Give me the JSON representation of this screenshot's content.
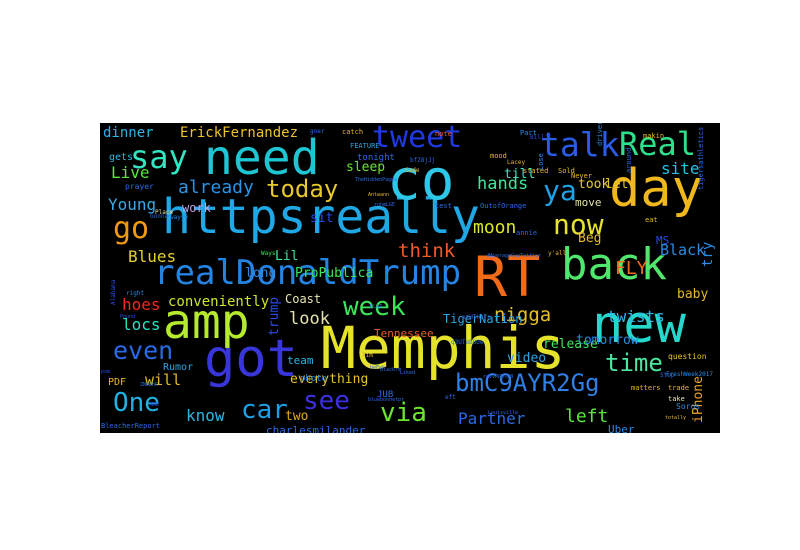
{
  "wordcloud": {
    "background": "#000000",
    "words": [
      {
        "text": "Memphis",
        "color": "#e4e22a"
      },
      {
        "text": "httpsreally",
        "color": "#1fa7e6"
      },
      {
        "text": "need",
        "color": "#1ec5d2"
      },
      {
        "text": "co",
        "color": "#2ec7e8"
      },
      {
        "text": "day",
        "color": "#f0b81c"
      },
      {
        "text": "RT",
        "color": "#f06a18"
      },
      {
        "text": "amp",
        "color": "#b6ea2f"
      },
      {
        "text": "new",
        "color": "#25d8cc"
      },
      {
        "text": "got",
        "color": "#3836d8"
      },
      {
        "text": "back",
        "color": "#4fe86d"
      },
      {
        "text": "realDonaldTrump",
        "color": "#2384e4"
      },
      {
        "text": "tweet",
        "color": "#1f3ae0"
      },
      {
        "text": "talk",
        "color": "#2a5ae6"
      },
      {
        "text": "Real",
        "color": "#2ee08a"
      },
      {
        "text": "say",
        "color": "#33e6c2"
      },
      {
        "text": "ya",
        "color": "#1ea3e6"
      },
      {
        "text": "go",
        "color": "#f09a14"
      },
      {
        "text": "now",
        "color": "#e6e22f"
      },
      {
        "text": "week",
        "color": "#3ce65a"
      },
      {
        "text": "even",
        "color": "#2a6ae6"
      },
      {
        "text": "see",
        "color": "#3d2fe0"
      },
      {
        "text": "via",
        "color": "#6ae62f"
      },
      {
        "text": "bmC9AYR2Gg",
        "color": "#2e7fe6"
      },
      {
        "text": "One",
        "color": "#20b2e0"
      },
      {
        "text": "time",
        "color": "#4be6a0"
      },
      {
        "text": "car",
        "color": "#1f9fe6"
      },
      {
        "text": "today",
        "color": "#e6c82a"
      },
      {
        "text": "Live",
        "color": "#5ae63a"
      },
      {
        "text": "already",
        "color": "#2a94e6"
      },
      {
        "text": "Young",
        "color": "#3aa9e6"
      },
      {
        "text": "site",
        "color": "#20c2e6"
      },
      {
        "text": "hands",
        "color": "#3de69a"
      },
      {
        "text": "think",
        "color": "#f05a2a"
      },
      {
        "text": "moon",
        "color": "#dde62f"
      },
      {
        "text": "FLY",
        "color": "#f06a1e"
      },
      {
        "text": "Blues",
        "color": "#e6d02f"
      },
      {
        "text": "nigga",
        "color": "#e6c22a"
      },
      {
        "text": "twists",
        "color": "#2fb6e6"
      },
      {
        "text": "Partner",
        "color": "#2a6ae6"
      },
      {
        "text": "left",
        "color": "#5ae63a"
      },
      {
        "text": "locs",
        "color": "#1fe6c2"
      },
      {
        "text": "hoes",
        "color": "#f02a1a"
      },
      {
        "text": "look",
        "color": "#e6e2b0"
      },
      {
        "text": "know",
        "color": "#2fb6e6"
      },
      {
        "text": "will",
        "color": "#e6b82a"
      },
      {
        "text": "video",
        "color": "#2aa6e6"
      },
      {
        "text": "release",
        "color": "#3fe65a"
      },
      {
        "text": "tomorrow",
        "color": "#2a8ae6"
      },
      {
        "text": "dinner",
        "color": "#2ab6e6"
      },
      {
        "text": "ErickFernandez",
        "color": "#f0c22a"
      },
      {
        "text": "everything",
        "color": "#e6c22a"
      },
      {
        "text": "Black",
        "color": "#2a8ae6"
      },
      {
        "text": "baby",
        "color": "#e6b82a"
      },
      {
        "text": "MS",
        "color": "#2a4ae6"
      },
      {
        "text": "Beg",
        "color": "#e6b82a"
      },
      {
        "text": "took",
        "color": "#e6d02a"
      },
      {
        "text": "let",
        "color": "#e6c22a"
      },
      {
        "text": "till",
        "color": "#3ae6c2"
      },
      {
        "text": "sleep",
        "color": "#6ae62f"
      },
      {
        "text": "work",
        "color": "#c0a0e6"
      },
      {
        "text": "sit",
        "color": "#2a4ae6"
      },
      {
        "text": "Lil",
        "color": "#3ae69a"
      },
      {
        "text": "long",
        "color": "#2a8ae6"
      },
      {
        "text": "ProPublica",
        "color": "#3ae65a"
      },
      {
        "text": "conveniently",
        "color": "#d0e62a"
      },
      {
        "text": "Coast",
        "color": "#e6e2b0"
      },
      {
        "text": "trump",
        "color": "#2a4ae6"
      },
      {
        "text": "Tennessee",
        "color": "#f05a2a"
      },
      {
        "text": "TigerNation",
        "color": "#2aa6e6"
      },
      {
        "text": "two",
        "color": "#e6a62a"
      },
      {
        "text": "charlesmilander",
        "color": "#2a6ae6"
      },
      {
        "text": "Uber",
        "color": "#2a8ae6"
      },
      {
        "text": "PDF",
        "color": "#e6b82a"
      },
      {
        "text": "Rumor",
        "color": "#2aa6e6"
      },
      {
        "text": "team",
        "color": "#2ab6e6"
      },
      {
        "text": "gets",
        "color": "#2ab6e6"
      },
      {
        "text": "move",
        "color": "#e6e2b0"
      },
      {
        "text": "photo",
        "color": "#2a8ae6"
      },
      {
        "text": "try",
        "color": "#2a8ae6"
      },
      {
        "text": "iPhone",
        "color": "#e6a62a"
      },
      {
        "text": "JUB",
        "color": "#2a6ae6"
      },
      {
        "text": "tonight",
        "color": "#2a6ae6"
      },
      {
        "text": "catch",
        "color": "#e6b82a"
      },
      {
        "text": "mood",
        "color": "#e6b82a"
      },
      {
        "text": "note",
        "color": "#f05a2a"
      },
      {
        "text": "Part",
        "color": "#2a8ae6"
      },
      {
        "text": "makin",
        "color": "#e6b82a"
      },
      {
        "text": "question",
        "color": "#e6c22a"
      },
      {
        "text": "matters",
        "color": "#e6b82a"
      },
      {
        "text": "trade",
        "color": "#e6b82a"
      },
      {
        "text": "take",
        "color": "#e6e2b0"
      },
      {
        "text": "Bill's",
        "color": "#2a4ae6"
      },
      {
        "text": "Sold",
        "color": "#e6c22a"
      },
      {
        "text": "FEATURE",
        "color": "#2aa6e6"
      },
      {
        "text": "Lose",
        "color": "#2a8ae6"
      },
      {
        "text": "stated",
        "color": "#e6b82a"
      },
      {
        "text": "right",
        "color": "#2a8ae6"
      },
      {
        "text": "prayer",
        "color": "#2a6ae6"
      },
      {
        "text": "Alabama",
        "color": "#2a4ae6"
      },
      {
        "text": "Never",
        "color": "#e6b82a"
      },
      {
        "text": "Ways",
        "color": "#3ae65a"
      },
      {
        "text": "Tim",
        "color": "#e6b82a"
      },
      {
        "text": "eft",
        "color": "#2a6ae6"
      },
      {
        "text": "around",
        "color": "#2a6ae6"
      },
      {
        "text": "driver",
        "color": "#2a8ae6"
      },
      {
        "text": "tigersathletics",
        "color": "#2a6ae6"
      },
      {
        "text": "Soros",
        "color": "#2a8ae6"
      },
      {
        "text": "FreshWeek2017",
        "color": "#2a8ae6"
      },
      {
        "text": "Lacey",
        "color": "#e6b82a"
      },
      {
        "text": "annie",
        "color": "#2a6ae6"
      },
      {
        "text": "y'all",
        "color": "#e6b82a"
      },
      {
        "text": "test",
        "color": "#2a6ae6"
      },
      {
        "text": "Cade",
        "color": "#e6b82a"
      },
      {
        "text": "Pound",
        "color": "#2a4ae6"
      },
      {
        "text": "Place",
        "color": "#e6e2b0"
      },
      {
        "text": "goer",
        "color": "#2a6ae6"
      },
      {
        "text": "totally",
        "color": "#e6b82a"
      },
      {
        "text": "Louisville",
        "color": "#2a6ae6"
      },
      {
        "text": "BleacherReport",
        "color": "#2a6ae6"
      },
      {
        "text": "wayyy",
        "color": "#2a8ae6"
      },
      {
        "text": "Gonna",
        "color": "#2a6ae6"
      },
      {
        "text": "WWE",
        "color": "#2a4ae6"
      },
      {
        "text": "Stop",
        "color": "#2a6ae6"
      },
      {
        "text": "eat",
        "color": "#e6b82a"
      },
      {
        "text": "heFuk",
        "color": "#2a6ae6"
      },
      {
        "text": "Liked",
        "color": "#2a6ae6"
      },
      {
        "text": "OutofOrange",
        "color": "#2a6ae6"
      },
      {
        "text": "pom",
        "color": "#2a4ae6"
      },
      {
        "text": "TheHiddenPages",
        "color": "#2a6ae6"
      },
      {
        "text": "#AverageGuyTwitter",
        "color": "#2a6ae6"
      },
      {
        "text": "ravVRPMsdB",
        "color": "#2a6ae6"
      },
      {
        "text": "ntHTHzrn",
        "color": "#2a6ae6"
      },
      {
        "text": "q3UTeb8Oe",
        "color": "#2a6ae6"
      },
      {
        "text": "bfZ8jJj",
        "color": "#2a6ae6"
      },
      {
        "text": "bluebonnetpr",
        "color": "#2a6ae6"
      },
      {
        "text": "Antwann",
        "color": "#e6b82a"
      },
      {
        "text": "PLAT",
        "color": "#2a6ae6"
      },
      {
        "text": "blackrm",
        "color": "#2a6ae6"
      },
      {
        "text": "rohmLGE",
        "color": "#2a6ae6"
      },
      {
        "text": "ZNmBhR",
        "color": "#2a6ae6"
      }
    ]
  }
}
